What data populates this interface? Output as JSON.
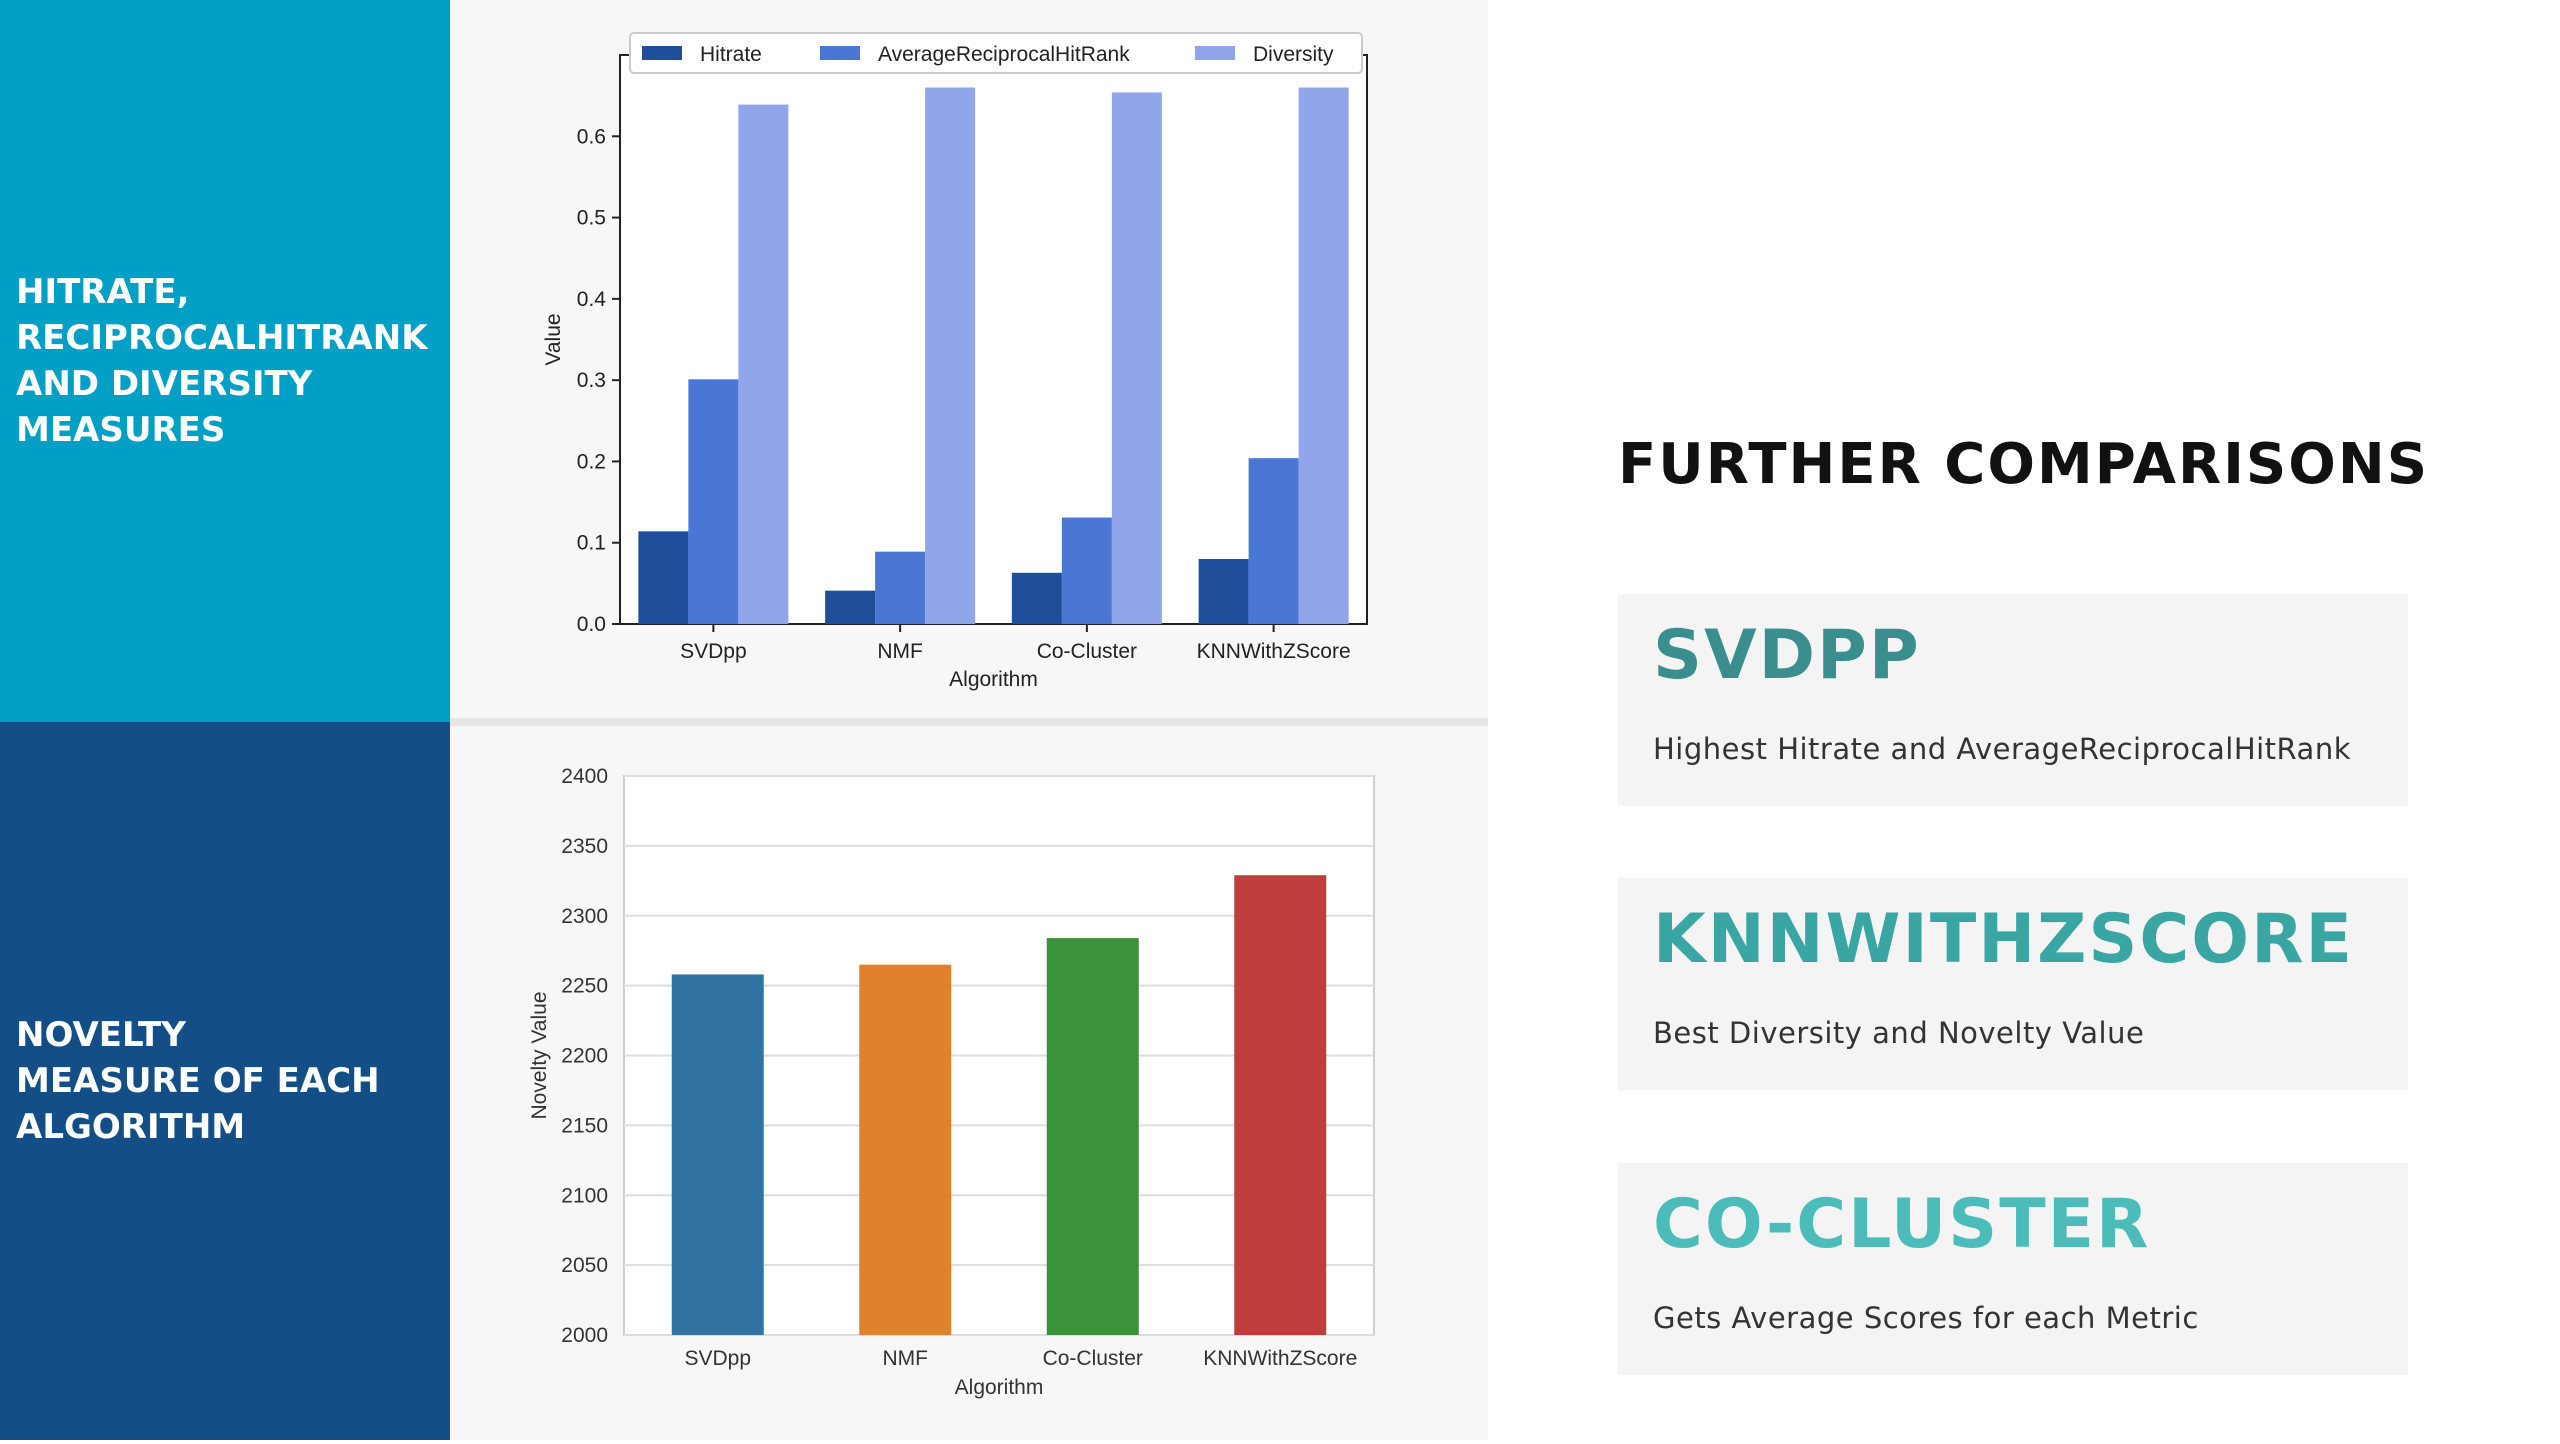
{
  "left_panels": {
    "top_title": [
      "HITRATE,",
      "RECIPROCALHITRANK",
      "AND DIVERSITY",
      "MEASURES"
    ],
    "bottom_title": [
      "NOVELTY",
      "MEASURE OF EACH",
      "ALGORITHM"
    ]
  },
  "right": {
    "heading": "FURTHER COMPARISONS",
    "cards": [
      {
        "title": "SVDPP",
        "desc": "Highest Hitrate and AverageReciprocalHitRank",
        "color": "#3a8f8e"
      },
      {
        "title": "KNNWITHZSCORE",
        "desc": "Best Diversity and Novelty Value",
        "color": "#3aa6a4"
      },
      {
        "title": "CO-CLUSTER",
        "desc": "Gets Average Scores for each Metric",
        "color": "#4cbcba"
      }
    ]
  },
  "chart_data": [
    {
      "type": "bar",
      "categories": [
        "SVDpp",
        "NMF",
        "Co-Cluster",
        "KNNWithZScore"
      ],
      "series": [
        {
          "name": "Hitrate",
          "values": [
            0.114,
            0.041,
            0.063,
            0.08
          ],
          "color": "#1f4e9a"
        },
        {
          "name": "AverageReciprocalHitRank",
          "values": [
            0.301,
            0.089,
            0.131,
            0.204
          ],
          "color": "#4a77d4"
        },
        {
          "name": "Diversity",
          "values": [
            0.639,
            0.66,
            0.654,
            0.66
          ],
          "color": "#91a6ea"
        }
      ],
      "xlabel": "Algorithm",
      "ylabel": "Value",
      "ylim": [
        0,
        0.7
      ],
      "yticks": [
        "0.0",
        "0.1",
        "0.2",
        "0.3",
        "0.4",
        "0.5",
        "0.6"
      ],
      "legend": "top"
    },
    {
      "type": "bar",
      "categories": [
        "SVDpp",
        "NMF",
        "Co-Cluster",
        "KNNWithZScore"
      ],
      "values": [
        2258,
        2265,
        2284,
        2329
      ],
      "colors": [
        "#3274a1",
        "#e1812c",
        "#3a923a",
        "#c03d3e"
      ],
      "xlabel": "Algorithm",
      "ylabel": "Novelty Value",
      "ylim": [
        2000,
        2400
      ],
      "yticks": [
        "2000",
        "2050",
        "2100",
        "2150",
        "2200",
        "2250",
        "2300",
        "2350",
        "2400"
      ],
      "grid": true
    }
  ]
}
